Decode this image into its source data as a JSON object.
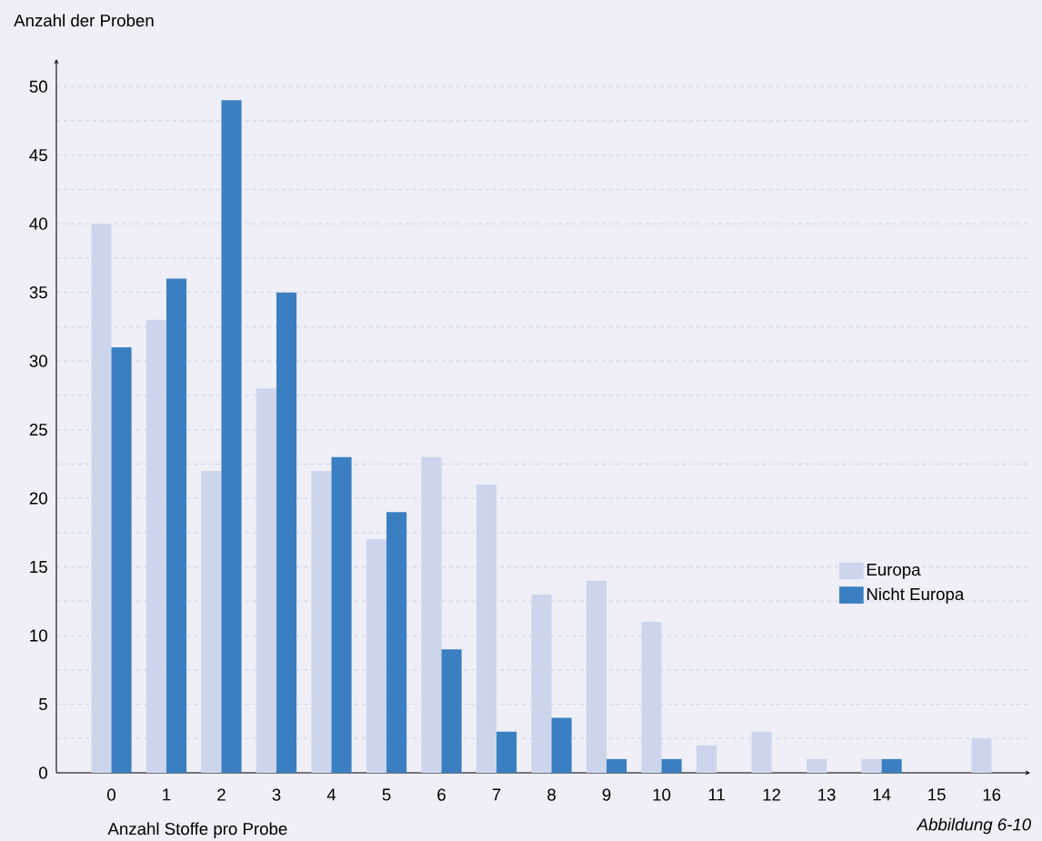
{
  "chart_data": {
    "type": "bar",
    "xlabel": "Anzahl Stoffe pro Probe",
    "ylabel": "Anzahl der Proben",
    "categories": [
      "0",
      "1",
      "2",
      "3",
      "4",
      "5",
      "6",
      "7",
      "8",
      "9",
      "10",
      "11",
      "12",
      "13",
      "14",
      "15",
      "16"
    ],
    "series": [
      {
        "name": "Europa",
        "color": "#ccd5ec",
        "values": [
          40,
          33,
          22,
          28,
          22,
          17,
          23,
          21,
          13,
          14,
          11,
          2,
          3,
          1,
          1,
          0,
          2.5
        ]
      },
      {
        "name": "Nicht Europa",
        "color": "#3a7fc1",
        "values": [
          31,
          36,
          49,
          35,
          23,
          19,
          9,
          3,
          4,
          1,
          1,
          0,
          0,
          0,
          1,
          0,
          0
        ]
      }
    ],
    "ylim": [
      0,
      52
    ],
    "yticks": [
      0,
      {
        "value": 2.5,
        "label": null
      },
      5,
      {
        "value": 7.5,
        "label": null
      },
      10,
      {
        "value": 12.5,
        "label": null
      },
      15,
      {
        "value": 17.5,
        "label": null
      },
      20,
      {
        "value": 22.5,
        "label": null
      },
      25,
      {
        "value": 27.5,
        "label": null
      },
      30,
      {
        "value": 32.5,
        "label": null
      },
      35,
      {
        "value": 37.5,
        "label": null
      },
      40,
      {
        "value": 42.5,
        "label": null
      },
      45,
      {
        "value": 47.5,
        "label": null
      },
      50
    ],
    "grid": "y",
    "legend": "right",
    "annotations": [
      "Abbildung 6-10"
    ]
  }
}
